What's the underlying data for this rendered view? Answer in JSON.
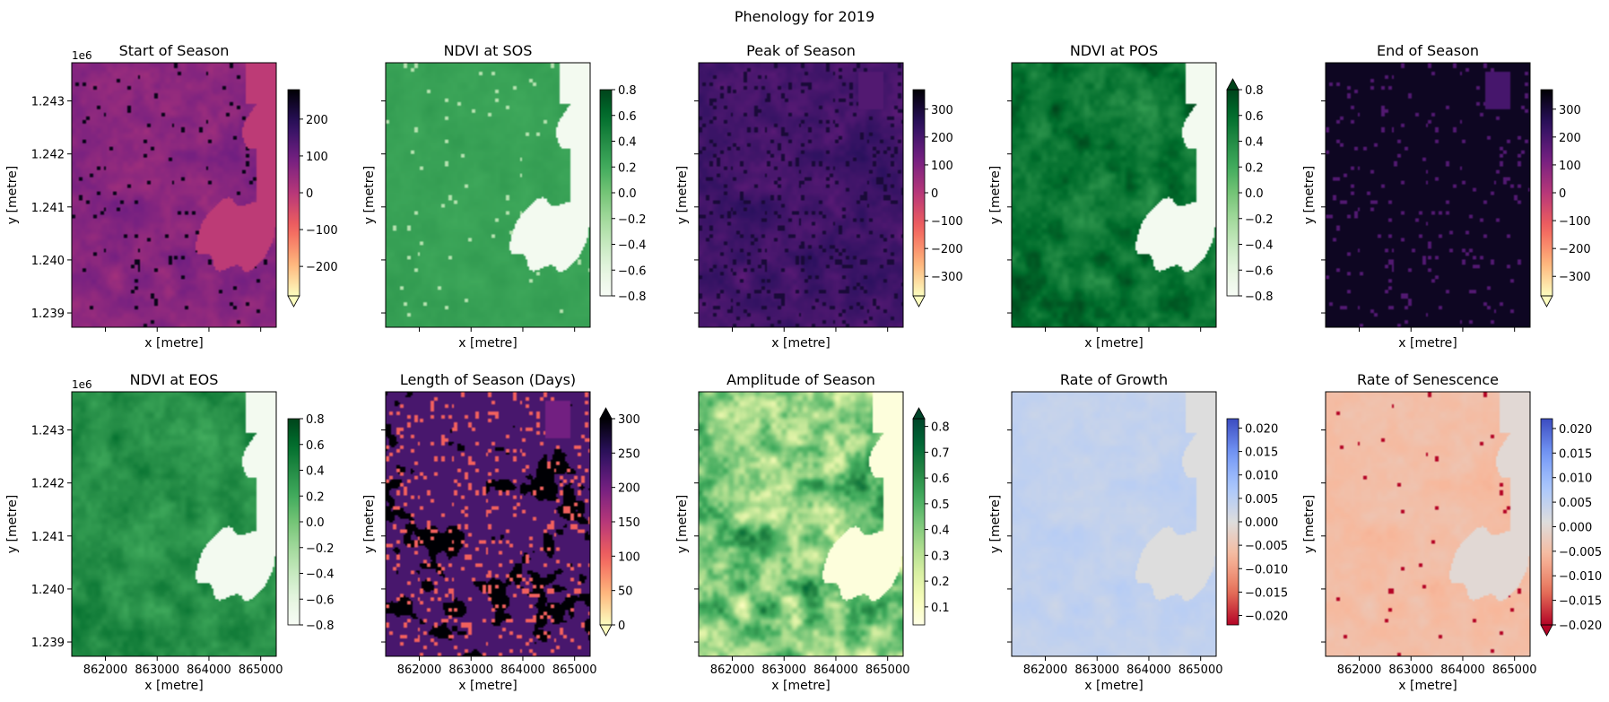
{
  "figure": {
    "title": "Phenology for 2019"
  },
  "axes_common": {
    "xlabel": "x [metre]",
    "ylabel": "y [metre]",
    "y_offset_label": "1e6",
    "x_ticks": [
      "862000",
      "863000",
      "864000",
      "865000"
    ],
    "x_tick_values": [
      862000,
      863000,
      864000,
      865000
    ],
    "xlim": [
      861350,
      865300
    ],
    "y_ticks": [
      "1.243",
      "1.242",
      "1.241",
      "1.240",
      "1.239"
    ],
    "y_tick_values": [
      1.243,
      1.242,
      1.241,
      1.24,
      1.239
    ],
    "ylim": [
      1.23873,
      1.24372
    ]
  },
  "chart_data": [
    {
      "type": "heatmap",
      "title": "Start of Season",
      "cmap": "magma_r",
      "vmin": -280,
      "vmax": 280,
      "extend": "min",
      "colorbar_ticks": [
        200,
        100,
        0,
        -100,
        -200
      ],
      "colorbar_labels": [
        "200",
        "100",
        "0",
        "−100",
        "−200"
      ],
      "pattern": "sos",
      "show_xlabels": false,
      "show_ylabels": true
    },
    {
      "type": "heatmap",
      "title": "NDVI at SOS",
      "cmap": "Greens",
      "vmin": -0.8,
      "vmax": 0.8,
      "extend": "neither",
      "colorbar_ticks": [
        0.8,
        0.6,
        0.4,
        0.2,
        0.0,
        -0.2,
        -0.4,
        -0.6,
        -0.8
      ],
      "colorbar_labels": [
        "0.8",
        "0.6",
        "0.4",
        "0.2",
        "0.0",
        "−0.2",
        "−0.4",
        "−0.6",
        "−0.8"
      ],
      "pattern": "ndvi_sos",
      "show_xlabels": false,
      "show_ylabels": false
    },
    {
      "type": "heatmap",
      "title": "Peak of Season",
      "cmap": "magma_r",
      "vmin": -370,
      "vmax": 370,
      "extend": "min",
      "colorbar_ticks": [
        300,
        200,
        100,
        0,
        -100,
        -200,
        -300
      ],
      "colorbar_labels": [
        "300",
        "200",
        "100",
        "0",
        "−100",
        "−200",
        "−300"
      ],
      "pattern": "pos",
      "show_xlabels": false,
      "show_ylabels": false
    },
    {
      "type": "heatmap",
      "title": "NDVI at POS",
      "cmap": "Greens",
      "vmin": -0.8,
      "vmax": 0.8,
      "extend": "max",
      "colorbar_ticks": [
        0.8,
        0.6,
        0.4,
        0.2,
        0.0,
        -0.2,
        -0.4,
        -0.6,
        -0.8
      ],
      "colorbar_labels": [
        "0.8",
        "0.6",
        "0.4",
        "0.2",
        "0.0",
        "−0.2",
        "−0.4",
        "−0.6",
        "−0.8"
      ],
      "pattern": "ndvi_pos",
      "show_xlabels": false,
      "show_ylabels": false
    },
    {
      "type": "heatmap",
      "title": "End of Season",
      "cmap": "magma_r",
      "vmin": -370,
      "vmax": 370,
      "extend": "min",
      "colorbar_ticks": [
        300,
        200,
        100,
        0,
        -100,
        -200,
        -300
      ],
      "colorbar_labels": [
        "300",
        "200",
        "100",
        "0",
        "−100",
        "−200",
        "−300"
      ],
      "pattern": "eos",
      "show_xlabels": false,
      "show_ylabels": false
    },
    {
      "type": "heatmap",
      "title": "NDVI at EOS",
      "cmap": "Greens",
      "vmin": -0.8,
      "vmax": 0.8,
      "extend": "neither",
      "colorbar_ticks": [
        0.8,
        0.6,
        0.4,
        0.2,
        0.0,
        -0.2,
        -0.4,
        -0.6,
        -0.8
      ],
      "colorbar_labels": [
        "0.8",
        "0.6",
        "0.4",
        "0.2",
        "0.0",
        "−0.2",
        "−0.4",
        "−0.6",
        "−0.8"
      ],
      "pattern": "ndvi_eos",
      "show_xlabels": true,
      "show_ylabels": true
    },
    {
      "type": "heatmap",
      "title": "Length of Season (Days)",
      "cmap": "magma_r",
      "vmin": 0,
      "vmax": 300,
      "extend": "both",
      "colorbar_ticks": [
        300,
        250,
        200,
        150,
        100,
        50,
        0
      ],
      "colorbar_labels": [
        "300",
        "250",
        "200",
        "150",
        "100",
        "50",
        "0"
      ],
      "pattern": "los",
      "show_xlabels": true,
      "show_ylabels": false
    },
    {
      "type": "heatmap",
      "title": "Amplitude of Season",
      "cmap": "YlGn",
      "vmin": 0.03,
      "vmax": 0.83,
      "extend": "max",
      "colorbar_ticks": [
        0.8,
        0.7,
        0.6,
        0.5,
        0.4,
        0.3,
        0.2,
        0.1
      ],
      "colorbar_labels": [
        "0.8",
        "0.7",
        "0.6",
        "0.5",
        "0.4",
        "0.3",
        "0.2",
        "0.1"
      ],
      "pattern": "aos",
      "show_xlabels": true,
      "show_ylabels": false
    },
    {
      "type": "heatmap",
      "title": "Rate of Growth",
      "cmap": "coolwarm_r",
      "vmin": -0.022,
      "vmax": 0.022,
      "extend": "neither",
      "colorbar_ticks": [
        0.02,
        0.015,
        0.01,
        0.005,
        0.0,
        -0.005,
        -0.01,
        -0.015,
        -0.02
      ],
      "colorbar_labels": [
        "0.020",
        "0.015",
        "0.010",
        "0.005",
        "0.000",
        "−0.005",
        "−0.010",
        "−0.015",
        "−0.020"
      ],
      "pattern": "rog",
      "show_xlabels": true,
      "show_ylabels": false
    },
    {
      "type": "heatmap",
      "title": "Rate of Senescence",
      "cmap": "coolwarm_r",
      "vmin": -0.02,
      "vmax": 0.022,
      "extend": "min",
      "colorbar_ticks": [
        0.02,
        0.015,
        0.01,
        0.005,
        0.0,
        -0.005,
        -0.01,
        -0.015,
        -0.02
      ],
      "colorbar_labels": [
        "0.020",
        "0.015",
        "0.010",
        "0.005",
        "0.000",
        "−0.005",
        "−0.010",
        "−0.015",
        "−0.020"
      ],
      "pattern": "ros",
      "show_xlabels": true,
      "show_ylabels": false
    }
  ]
}
